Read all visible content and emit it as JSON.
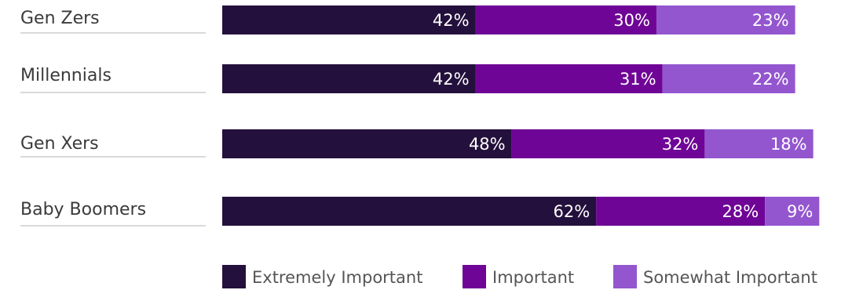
{
  "chart_data": {
    "type": "bar",
    "orientation": "horizontal",
    "stacked": true,
    "categories": [
      "Gen Zers",
      "Millennials",
      "Gen Xers",
      "Baby Boomers"
    ],
    "series": [
      {
        "name": "Extremely Important",
        "color": "#24103c",
        "values": [
          42,
          42,
          48,
          62
        ],
        "labels": [
          "42%",
          "42%",
          "48%",
          "62%"
        ]
      },
      {
        "name": "Important",
        "color": "#6f0596",
        "values": [
          30,
          31,
          32,
          28
        ],
        "labels": [
          "30%",
          "31%",
          "32%",
          "28%"
        ]
      },
      {
        "name": "Somewhat Important",
        "color": "#9356cf",
        "values": [
          23,
          22,
          18,
          9
        ],
        "labels": [
          "23%",
          "22%",
          "18%",
          "9%"
        ]
      }
    ],
    "unit": "%",
    "legend_position": "bottom",
    "grid": false
  }
}
